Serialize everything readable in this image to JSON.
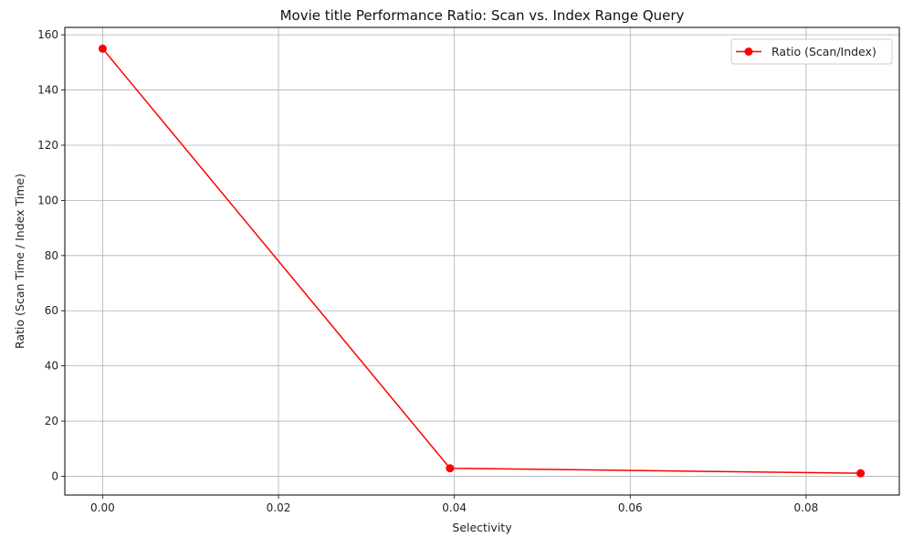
{
  "chart_data": {
    "type": "line",
    "title": "Movie title Performance Ratio: Scan vs. Index Range Query",
    "xlabel": "Selectivity",
    "ylabel": "Ratio (Scan Time / Index Time)",
    "xlim": [
      -0.0043,
      0.0906
    ],
    "ylim": [
      -6.8,
      162.7
    ],
    "x_ticks": [
      0.0,
      0.02,
      0.04,
      0.06,
      0.08
    ],
    "x_tick_labels": [
      "0.00",
      "0.02",
      "0.04",
      "0.06",
      "0.08"
    ],
    "y_ticks": [
      0,
      20,
      40,
      60,
      80,
      100,
      120,
      140,
      160
    ],
    "y_tick_labels": [
      "0",
      "20",
      "40",
      "60",
      "80",
      "100",
      "120",
      "140",
      "160"
    ],
    "grid": true,
    "legend_position": "top-right",
    "series": [
      {
        "name": "Ratio (Scan/Index)",
        "color": "#ff0000",
        "marker": "circle",
        "x": [
          0.0,
          0.0395,
          0.0862
        ],
        "y": [
          155.0,
          2.9,
          1.1
        ]
      }
    ]
  }
}
